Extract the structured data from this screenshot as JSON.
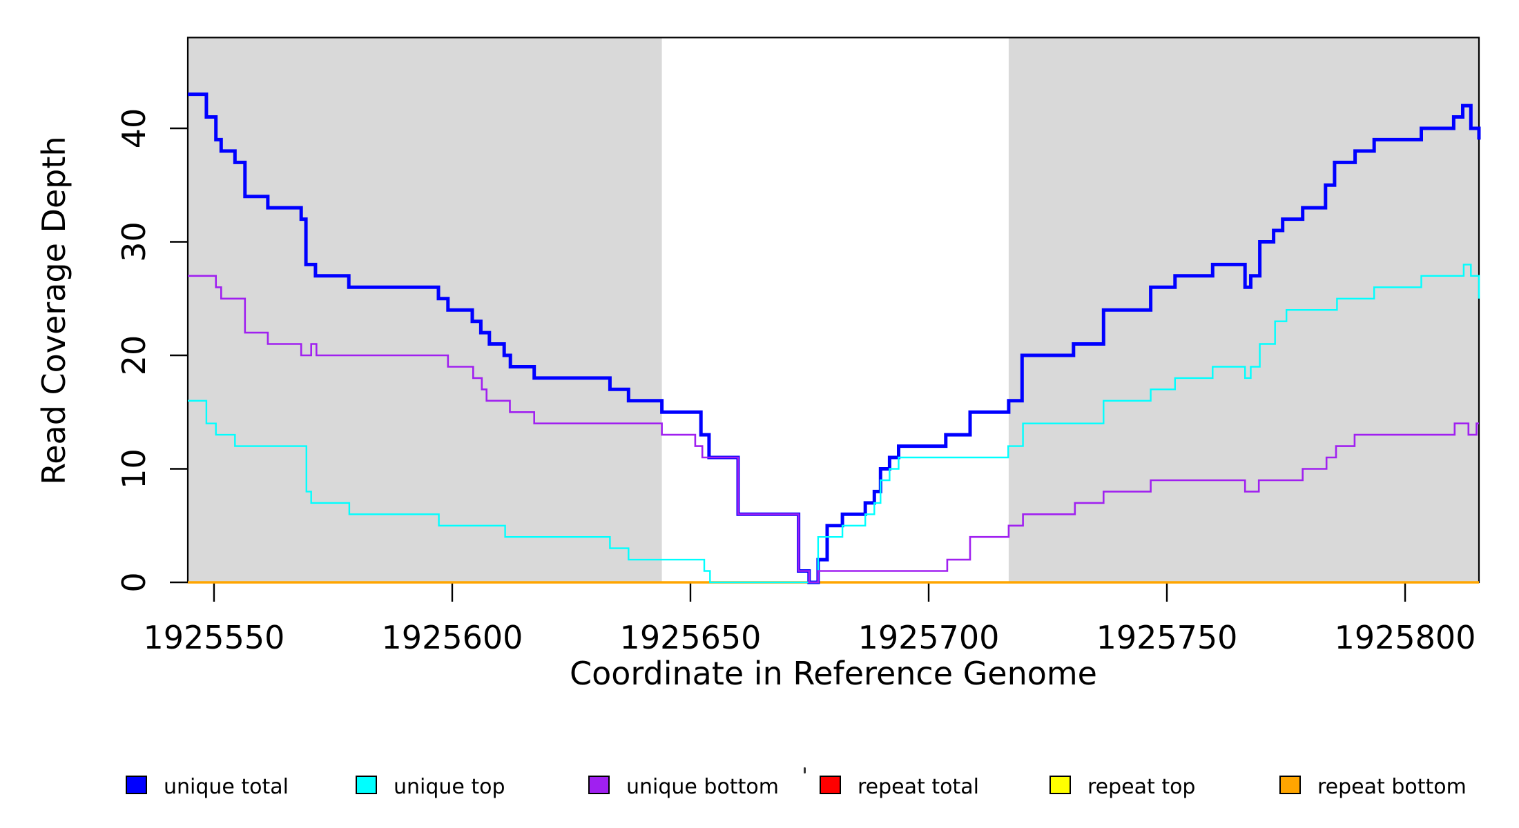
{
  "chart_data": {
    "type": "line",
    "subtype": "step",
    "title": "",
    "xlabel": "Coordinate in Reference Genome",
    "ylabel": "Read Coverage Depth",
    "xlim": [
      1925544.5,
      1925815.5
    ],
    "ylim": [
      0,
      48
    ],
    "grid": false,
    "legend_position": "bottom",
    "x_ticks": [
      {
        "value": 1925550,
        "label": "1925550"
      },
      {
        "value": 1925600,
        "label": "1925600"
      },
      {
        "value": 1925650,
        "label": "1925650"
      },
      {
        "value": 1925700,
        "label": "1925700"
      },
      {
        "value": 1925750,
        "label": "1925750"
      },
      {
        "value": 1925800,
        "label": "1925800"
      }
    ],
    "y_ticks": [
      {
        "value": 0,
        "label": "0"
      },
      {
        "value": 10,
        "label": "10"
      },
      {
        "value": 20,
        "label": "20"
      },
      {
        "value": 30,
        "label": "30"
      },
      {
        "value": 40,
        "label": "40"
      }
    ],
    "shaded_regions": [
      {
        "x0": 1925544.5,
        "x1": 1925644.0,
        "color": "#D9D9D9",
        "meaning": "unique (non-repeat) flanking region"
      },
      {
        "x0": 1925716.8,
        "x1": 1925815.5,
        "color": "#D9D9D9",
        "meaning": "unique (non-repeat) flanking region"
      }
    ],
    "series": [
      {
        "name": "repeat total",
        "color": "#FF0000",
        "stroke_width": 2.4,
        "points": [
          [
            1925544.5,
            0
          ]
        ]
      },
      {
        "name": "repeat top",
        "color": "#FFFF00",
        "stroke_width": 2.4,
        "points": [
          [
            1925544.5,
            0
          ]
        ]
      },
      {
        "name": "repeat bottom",
        "color": "#FFA500",
        "stroke_width": 3.6,
        "points": [
          [
            1925544.5,
            0
          ]
        ]
      },
      {
        "name": "unique total",
        "color": "#0000FF",
        "stroke_width": 5,
        "points": [
          [
            1925544.5,
            43
          ],
          [
            1925548.4,
            41
          ],
          [
            1925550.4,
            39
          ],
          [
            1925551.5,
            38
          ],
          [
            1925554.4,
            37
          ],
          [
            1925556.5,
            34
          ],
          [
            1925561.3,
            33
          ],
          [
            1925568.3,
            32
          ],
          [
            1925569.3,
            28
          ],
          [
            1925571.3,
            27
          ],
          [
            1925578.3,
            26
          ],
          [
            1925597.1,
            25
          ],
          [
            1925599.1,
            24
          ],
          [
            1925604.2,
            23
          ],
          [
            1925606.0,
            22
          ],
          [
            1925607.8,
            21
          ],
          [
            1925610.9,
            20
          ],
          [
            1925612.2,
            19
          ],
          [
            1925617.2,
            18
          ],
          [
            1925633.1,
            17
          ],
          [
            1925637.0,
            16
          ],
          [
            1925644.0,
            15
          ],
          [
            1925652.2,
            13
          ],
          [
            1925653.9,
            11
          ],
          [
            1925660.0,
            6
          ],
          [
            1925672.7,
            1
          ],
          [
            1925674.9,
            0
          ],
          [
            1925676.8,
            2
          ],
          [
            1925678.7,
            5
          ],
          [
            1925681.9,
            6
          ],
          [
            1925686.7,
            7
          ],
          [
            1925688.6,
            8
          ],
          [
            1925689.9,
            10
          ],
          [
            1925691.8,
            11
          ],
          [
            1925693.7,
            12
          ],
          [
            1925703.6,
            13
          ],
          [
            1925708.7,
            15
          ],
          [
            1925716.8,
            16
          ],
          [
            1925719.6,
            20
          ],
          [
            1925730.4,
            21
          ],
          [
            1925736.7,
            24
          ],
          [
            1925746.6,
            26
          ],
          [
            1925751.7,
            27
          ],
          [
            1925759.6,
            28
          ],
          [
            1925766.4,
            26
          ],
          [
            1925767.6,
            27
          ],
          [
            1925769.5,
            30
          ],
          [
            1925772.4,
            31
          ],
          [
            1925774.3,
            32
          ],
          [
            1925778.5,
            33
          ],
          [
            1925783.3,
            35
          ],
          [
            1925785.2,
            37
          ],
          [
            1925789.5,
            38
          ],
          [
            1925793.5,
            39
          ],
          [
            1925803.4,
            40
          ],
          [
            1925810.2,
            41
          ],
          [
            1925812.1,
            42
          ],
          [
            1925813.8,
            40
          ],
          [
            1925815.5,
            39
          ]
        ]
      },
      {
        "name": "unique top",
        "color": "#00FFFF",
        "stroke_width": 2.4,
        "points": [
          [
            1925544.5,
            16
          ],
          [
            1925548.4,
            14
          ],
          [
            1925550.4,
            13
          ],
          [
            1925554.4,
            12
          ],
          [
            1925569.4,
            8
          ],
          [
            1925570.4,
            7
          ],
          [
            1925578.4,
            6
          ],
          [
            1925597.2,
            5
          ],
          [
            1925611.1,
            4
          ],
          [
            1925633.1,
            3
          ],
          [
            1925637.0,
            2
          ],
          [
            1925652.9,
            1
          ],
          [
            1925654.1,
            0
          ],
          [
            1925676.8,
            4
          ],
          [
            1925681.9,
            5
          ],
          [
            1925686.7,
            6
          ],
          [
            1925688.6,
            7
          ],
          [
            1925689.9,
            9
          ],
          [
            1925691.8,
            10
          ],
          [
            1925693.7,
            11
          ],
          [
            1925716.7,
            12
          ],
          [
            1925719.8,
            14
          ],
          [
            1925736.7,
            16
          ],
          [
            1925746.6,
            17
          ],
          [
            1925751.7,
            18
          ],
          [
            1925759.6,
            19
          ],
          [
            1925766.4,
            18
          ],
          [
            1925767.6,
            19
          ],
          [
            1925769.5,
            21
          ],
          [
            1925772.7,
            23
          ],
          [
            1925775.1,
            24
          ],
          [
            1925785.7,
            25
          ],
          [
            1925793.5,
            26
          ],
          [
            1925803.4,
            27
          ],
          [
            1925812.3,
            28
          ],
          [
            1925813.8,
            27
          ],
          [
            1925815.5,
            25
          ]
        ]
      },
      {
        "name": "unique bottom",
        "color": "#A020F0",
        "stroke_width": 2.6,
        "points": [
          [
            1925544.5,
            27
          ],
          [
            1925550.4,
            26
          ],
          [
            1925551.5,
            25
          ],
          [
            1925556.5,
            22
          ],
          [
            1925561.3,
            21
          ],
          [
            1925568.3,
            20
          ],
          [
            1925570.4,
            21
          ],
          [
            1925571.5,
            20
          ],
          [
            1925599.1,
            19
          ],
          [
            1925604.4,
            18
          ],
          [
            1925606.2,
            17
          ],
          [
            1925607.2,
            16
          ],
          [
            1925612.1,
            15
          ],
          [
            1925617.2,
            14
          ],
          [
            1925644.0,
            13
          ],
          [
            1925651.0,
            12
          ],
          [
            1925652.5,
            11
          ],
          [
            1925660.0,
            6
          ],
          [
            1925672.7,
            1
          ],
          [
            1925674.9,
            0
          ],
          [
            1925676.8,
            1
          ],
          [
            1925703.9,
            2
          ],
          [
            1925708.7,
            4
          ],
          [
            1925716.8,
            5
          ],
          [
            1925719.8,
            6
          ],
          [
            1925730.7,
            7
          ],
          [
            1925736.7,
            8
          ],
          [
            1925746.6,
            9
          ],
          [
            1925766.4,
            8
          ],
          [
            1925769.3,
            9
          ],
          [
            1925778.5,
            10
          ],
          [
            1925783.5,
            11
          ],
          [
            1925785.5,
            12
          ],
          [
            1925789.4,
            13
          ],
          [
            1925810.4,
            14
          ],
          [
            1925813.3,
            13
          ],
          [
            1925815.0,
            14
          ]
        ]
      }
    ]
  },
  "legend": {
    "items": [
      {
        "label": "unique total",
        "color": "#0000FF"
      },
      {
        "label": "unique top",
        "color": "#00FFFF"
      },
      {
        "label": "unique bottom",
        "color": "#A020F0"
      },
      {
        "label": "repeat total",
        "color": "#FF0000"
      },
      {
        "label": "repeat top",
        "color": "#FFFF00"
      },
      {
        "label": "repeat bottom",
        "color": "#FFA500"
      }
    ]
  },
  "axes_color": "#000000",
  "plot_background": "#FFFFFF"
}
